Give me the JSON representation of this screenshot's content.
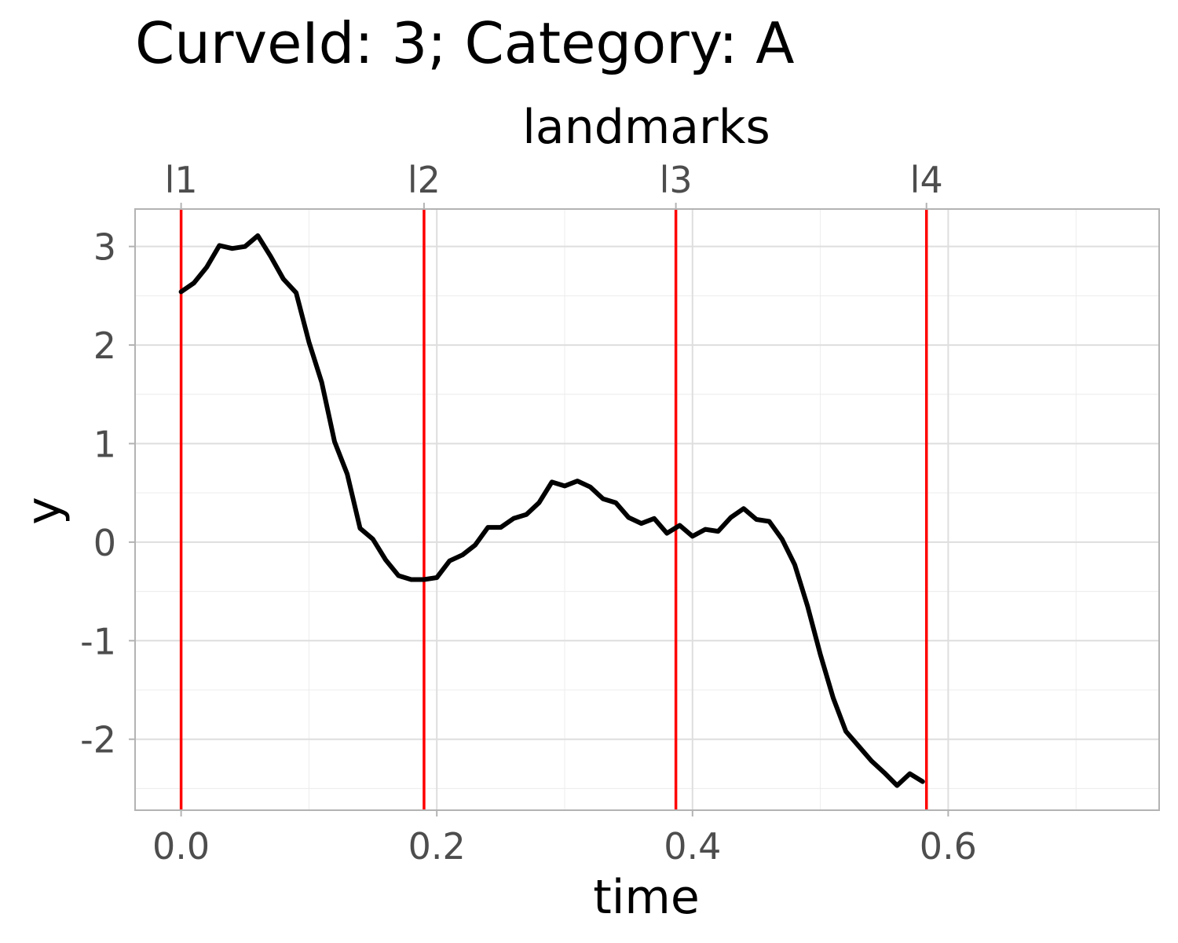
{
  "chart_data": {
    "type": "line",
    "title": "CurveId: 3; Category: A",
    "xlabel": "time",
    "ylabel": "y",
    "top_axis_label": "landmarks",
    "xlim": [
      -0.036,
      0.765
    ],
    "ylim": [
      -2.72,
      3.38
    ],
    "x_ticks": [
      0.0,
      0.2,
      0.4,
      0.6
    ],
    "x_tick_labels": [
      "0.0",
      "0.2",
      "0.4",
      "0.6"
    ],
    "x_minor_ticks": [
      0.1,
      0.3,
      0.5,
      0.7
    ],
    "y_ticks": [
      3,
      2,
      1,
      0,
      -1,
      -2
    ],
    "y_tick_labels": [
      "3",
      "2",
      "1",
      "0",
      "-1",
      "-2"
    ],
    "y_minor_ticks": [
      2.5,
      1.5,
      0.5,
      -0.5,
      -1.5,
      -2.5
    ],
    "grid": true,
    "legend": "none",
    "landmarks": [
      {
        "label": "l1",
        "x": 0.0
      },
      {
        "label": "l2",
        "x": 0.19
      },
      {
        "label": "l3",
        "x": 0.387
      },
      {
        "label": "l4",
        "x": 0.583
      }
    ],
    "series": [
      {
        "color": "#000000",
        "x": [
          0.0,
          0.01,
          0.02,
          0.03,
          0.04,
          0.05,
          0.06,
          0.07,
          0.08,
          0.09,
          0.1,
          0.11,
          0.12,
          0.13,
          0.14,
          0.15,
          0.16,
          0.17,
          0.18,
          0.19,
          0.2,
          0.21,
          0.22,
          0.23,
          0.24,
          0.25,
          0.26,
          0.27,
          0.28,
          0.29,
          0.3,
          0.31,
          0.32,
          0.33,
          0.34,
          0.35,
          0.36,
          0.37,
          0.38,
          0.39,
          0.4,
          0.41,
          0.42,
          0.43,
          0.44,
          0.45,
          0.46,
          0.47,
          0.48,
          0.49,
          0.5,
          0.51,
          0.52,
          0.53,
          0.54,
          0.55,
          0.56,
          0.57,
          0.58
        ],
        "y": [
          2.54,
          2.63,
          2.79,
          3.01,
          2.98,
          3.0,
          3.11,
          2.9,
          2.67,
          2.53,
          2.03,
          1.62,
          1.02,
          0.69,
          0.14,
          0.03,
          -0.18,
          -0.34,
          -0.38,
          -0.38,
          -0.36,
          -0.19,
          -0.13,
          -0.03,
          0.15,
          0.15,
          0.24,
          0.28,
          0.4,
          0.61,
          0.57,
          0.62,
          0.56,
          0.44,
          0.4,
          0.25,
          0.19,
          0.24,
          0.09,
          0.17,
          0.06,
          0.13,
          0.11,
          0.25,
          0.34,
          0.23,
          0.21,
          0.03,
          -0.23,
          -0.65,
          -1.14,
          -1.58,
          -1.92,
          -2.07,
          -2.22,
          -2.34,
          -2.47,
          -2.35,
          -2.43
        ]
      }
    ],
    "landmark_color": "#ff0000"
  }
}
